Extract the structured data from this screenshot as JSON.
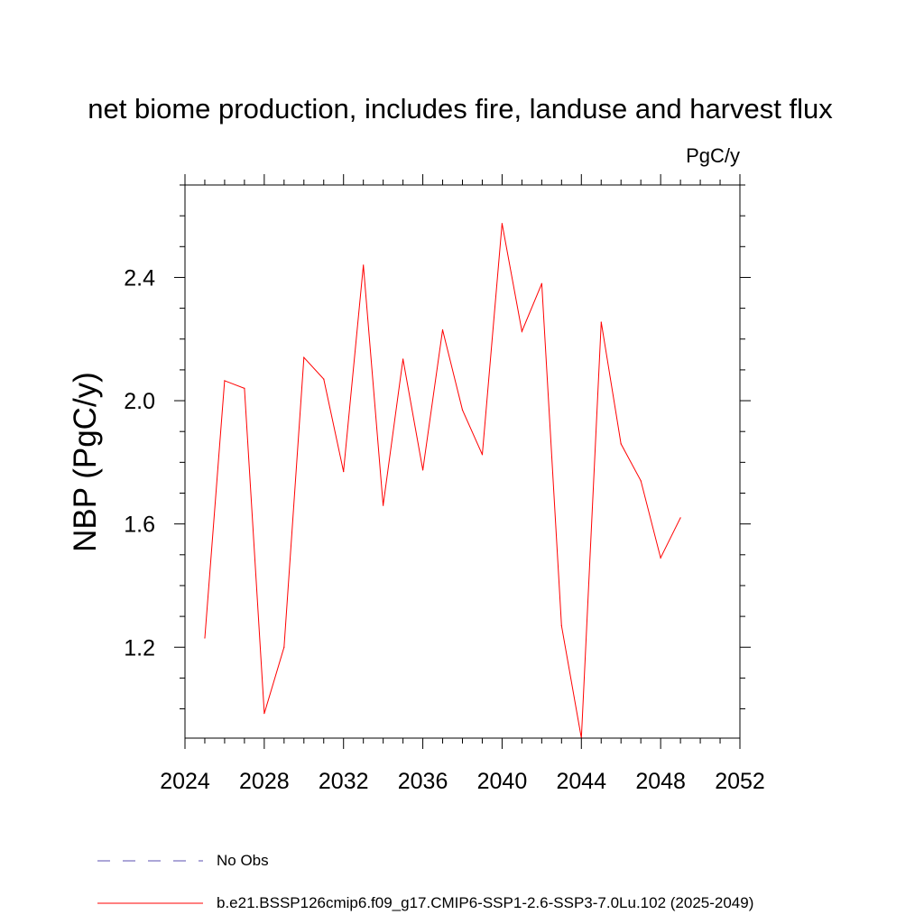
{
  "chart_data": {
    "type": "line",
    "title": "net biome production, includes fire, landuse and harvest flux",
    "units": "PgC/y",
    "xlabel": "",
    "ylabel": "NBP  (PgC/y)",
    "xlim": [
      2024,
      2052
    ],
    "ylim": [
      0.905,
      2.7
    ],
    "x_ticks": [
      "2024",
      "2028",
      "2032",
      "2036",
      "2040",
      "2044",
      "2048",
      "2052"
    ],
    "y_ticks": [
      "1.2",
      "1.6",
      "2.0",
      "2.4"
    ],
    "grid": false,
    "legend_position": "bottom-left",
    "series": [
      {
        "name": "b.e21.BSSP126cmip6.f09_g17.CMIP6-SSP1-2.6-SSP3-7.0Lu.102 (2025-2049)",
        "color": "#ff0000",
        "style": "solid",
        "x": [
          2025,
          2026,
          2027,
          2028,
          2029,
          2030,
          2031,
          2032,
          2033,
          2034,
          2035,
          2036,
          2037,
          2038,
          2039,
          2040,
          2041,
          2042,
          2043,
          2044,
          2045,
          2046,
          2047,
          2048,
          2049
        ],
        "y": [
          1.23,
          2.065,
          2.04,
          0.985,
          1.2,
          2.14,
          2.07,
          1.77,
          2.44,
          1.66,
          2.135,
          1.775,
          2.23,
          1.97,
          1.825,
          2.575,
          2.225,
          2.38,
          1.27,
          0.905,
          2.255,
          1.86,
          1.74,
          1.49,
          1.62
        ]
      }
    ],
    "legend": [
      {
        "label": "No Obs",
        "color": "#5a4fb0",
        "style": "dashed"
      },
      {
        "label": "b.e21.BSSP126cmip6.f09_g17.CMIP6-SSP1-2.6-SSP3-7.0Lu.102 (2025-2049)",
        "color": "#ff0000",
        "style": "solid"
      }
    ]
  }
}
